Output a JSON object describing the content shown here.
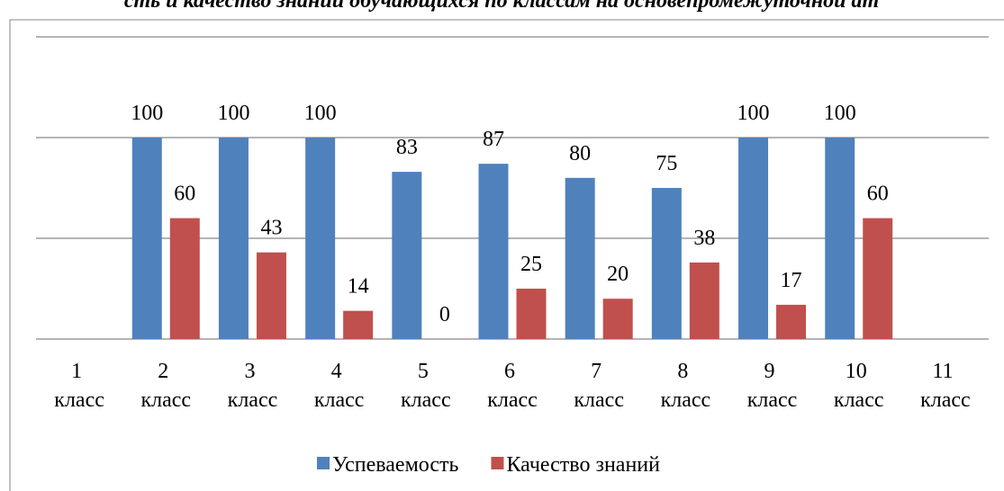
{
  "chart_data": {
    "type": "bar",
    "title": "сть и качество знаний обучающихся по классам на основепромежуточной ат",
    "categories": [
      "1 класс",
      "2 класс",
      "3 класс",
      "4 класс",
      "5 класс",
      "6 класс",
      "7 класс",
      "8 класс",
      "9 класс",
      "10 класс",
      "11 класс"
    ],
    "series": [
      {
        "name": "Успеваемость",
        "color": "#4f81bd",
        "values": [
          null,
          100,
          100,
          100,
          83,
          87,
          80,
          75,
          100,
          100,
          null
        ]
      },
      {
        "name": "Качество знаний",
        "color": "#c0504d",
        "values": [
          null,
          60,
          43,
          14,
          0,
          25,
          20,
          38,
          17,
          60,
          null
        ]
      }
    ],
    "ylim": [
      0,
      150
    ],
    "yticks": [
      0,
      50,
      100,
      150
    ],
    "grid": true,
    "legend": "bottom"
  }
}
